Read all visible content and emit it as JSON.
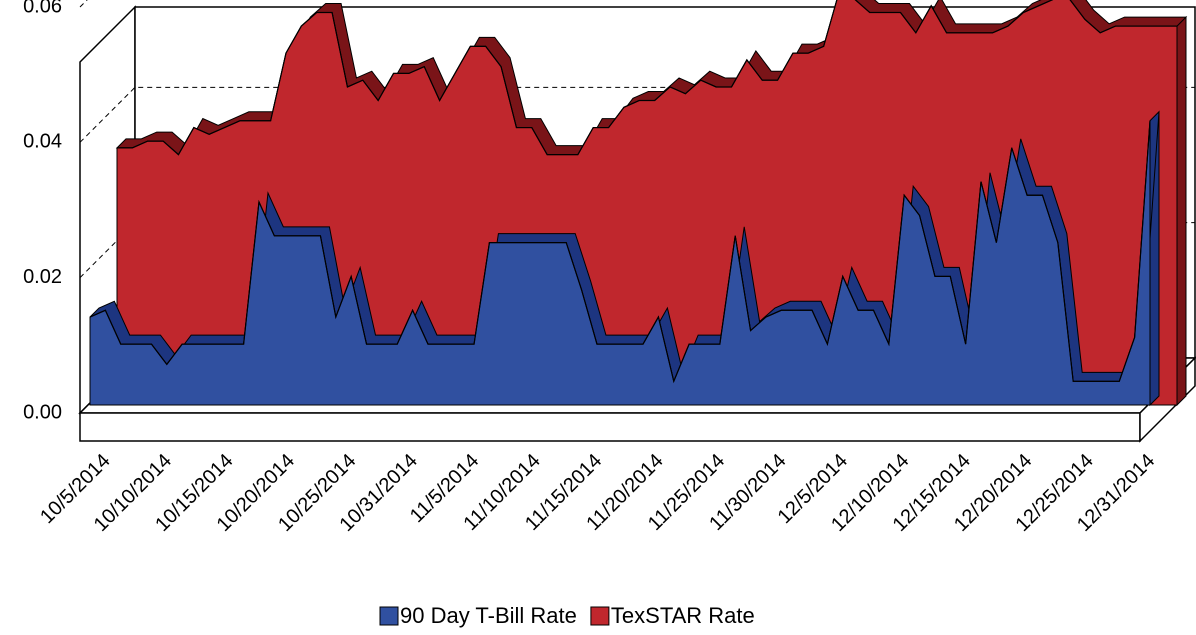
{
  "chart_data": {
    "type": "area3d",
    "categories": [
      null,
      "10/5/2014",
      null,
      null,
      null,
      "10/10/2014",
      null,
      null,
      null,
      "10/15/2014",
      null,
      null,
      null,
      "10/20/2014",
      null,
      null,
      null,
      "10/25/2014",
      null,
      null,
      null,
      "10/31/2014",
      null,
      null,
      null,
      "11/5/2014",
      null,
      null,
      null,
      "11/10/2014",
      null,
      null,
      null,
      "11/15/2014",
      null,
      null,
      null,
      "11/20/2014",
      null,
      null,
      null,
      "11/25/2014",
      null,
      null,
      null,
      "11/30/2014",
      null,
      null,
      null,
      "12/5/2014",
      null,
      null,
      null,
      "12/10/2014",
      null,
      null,
      null,
      "12/15/2014",
      null,
      null,
      null,
      "12/20/2014",
      null,
      null,
      null,
      "12/25/2014",
      null,
      null,
      null,
      "12/31/2014"
    ],
    "series": [
      {
        "name": "90 Day T-Bill Rate",
        "color": "#3050a0",
        "values": [
          0.013,
          0.014,
          0.009,
          0.009,
          0.009,
          0.006,
          0.009,
          0.009,
          0.009,
          0.009,
          0.009,
          0.03,
          0.025,
          0.025,
          0.025,
          0.025,
          0.013,
          0.019,
          0.009,
          0.009,
          0.009,
          0.014,
          0.009,
          0.009,
          0.009,
          0.009,
          0.024,
          0.024,
          0.024,
          0.024,
          0.024,
          0.024,
          0.017,
          0.009,
          0.009,
          0.009,
          0.009,
          0.013,
          0.0035,
          0.009,
          0.009,
          0.009,
          0.025,
          0.011,
          0.013,
          0.014,
          0.014,
          0.014,
          0.009,
          0.019,
          0.014,
          0.014,
          0.009,
          0.031,
          0.028,
          0.019,
          0.019,
          0.009,
          0.033,
          0.024,
          0.038,
          0.031,
          0.031,
          0.024,
          0.0035,
          0.0035,
          0.0035,
          0.0035,
          0.01,
          0.042
        ]
      },
      {
        "name": "TexSTAR Rate",
        "color": "#c0272d",
        "values": [
          0.038,
          0.038,
          0.039,
          0.039,
          0.037,
          0.041,
          0.04,
          0.041,
          0.042,
          0.042,
          0.042,
          0.052,
          0.056,
          0.058,
          0.058,
          0.047,
          0.048,
          0.045,
          0.049,
          0.049,
          0.05,
          0.045,
          0.049,
          0.053,
          0.053,
          0.05,
          0.041,
          0.041,
          0.037,
          0.037,
          0.037,
          0.041,
          0.041,
          0.044,
          0.045,
          0.045,
          0.047,
          0.046,
          0.048,
          0.047,
          0.047,
          0.051,
          0.048,
          0.048,
          0.052,
          0.052,
          0.053,
          0.061,
          0.06,
          0.058,
          0.058,
          0.058,
          0.055,
          0.059,
          0.055,
          0.055,
          0.055,
          0.055,
          0.056,
          0.058,
          0.059,
          0.06,
          0.06,
          0.057,
          0.055,
          0.056,
          0.056,
          0.056,
          0.056,
          0.056
        ]
      }
    ],
    "ylim": [
      0,
      0.06
    ],
    "yticks": [
      {
        "value": 0,
        "label": "0.00"
      },
      {
        "value": 0.02,
        "label": "0.02"
      },
      {
        "value": 0.04,
        "label": "0.04"
      },
      {
        "value": 0.06,
        "label": "0.06"
      }
    ],
    "grid": true,
    "legend": "bottom"
  }
}
